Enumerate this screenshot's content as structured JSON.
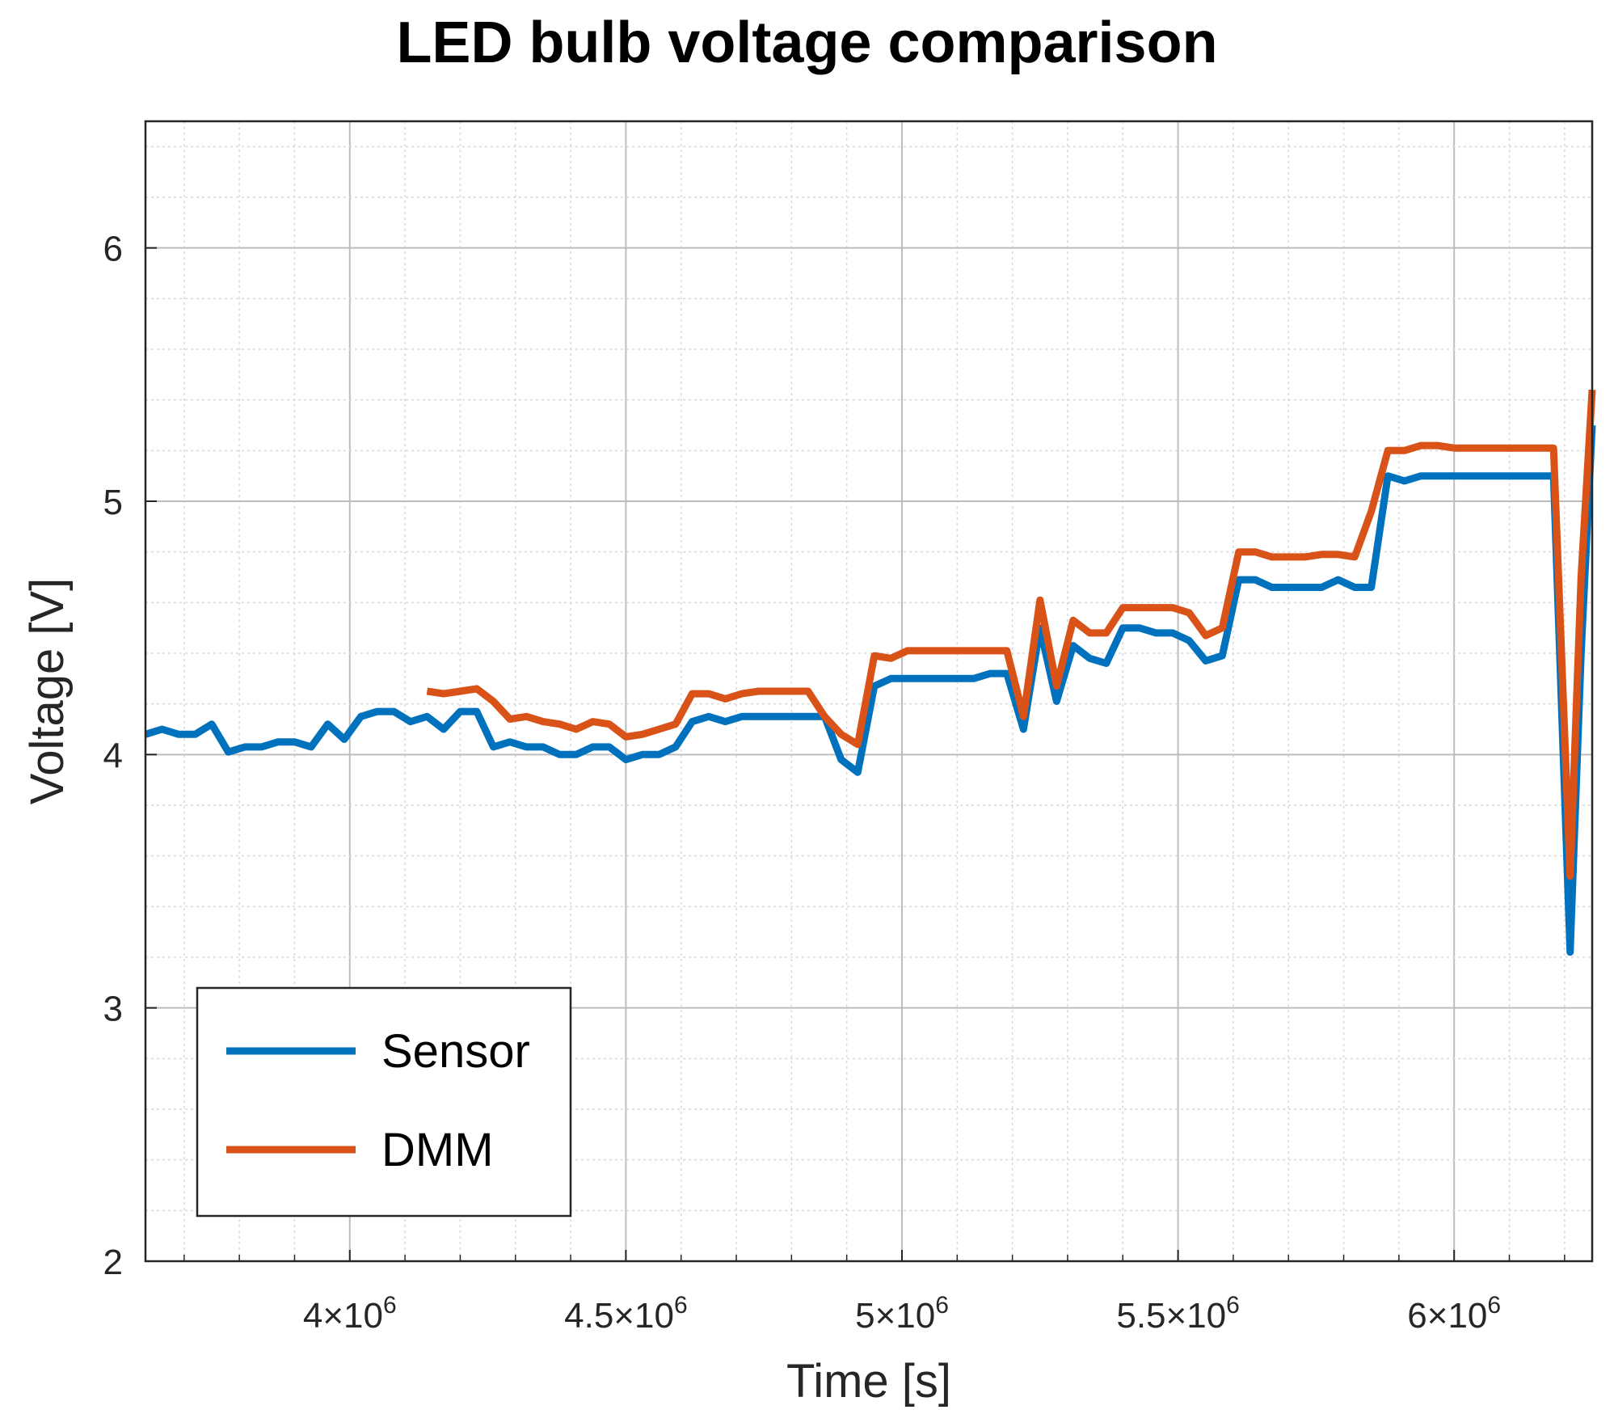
{
  "chart_data": {
    "type": "line",
    "title": "LED bulb voltage comparison",
    "xlabel": "Time [s]",
    "ylabel": "Voltage [V]",
    "xlim": [
      3630000,
      6250000
    ],
    "ylim": [
      2,
      6.5
    ],
    "grid": true,
    "minor_grid": true,
    "legend_position": "bottom-left",
    "x_ticks": [
      {
        "value": 4000000,
        "mantissa": "4",
        "exp": "6"
      },
      {
        "value": 4500000,
        "mantissa": "4.5",
        "exp": "6"
      },
      {
        "value": 5000000,
        "mantissa": "5",
        "exp": "6"
      },
      {
        "value": 5500000,
        "mantissa": "5.5",
        "exp": "6"
      },
      {
        "value": 6000000,
        "mantissa": "6",
        "exp": "6"
      }
    ],
    "x_tick_times_sign": "×10",
    "y_ticks": [
      {
        "value": 2,
        "label": "2"
      },
      {
        "value": 3,
        "label": "3"
      },
      {
        "value": 4,
        "label": "4"
      },
      {
        "value": 5,
        "label": "5"
      },
      {
        "value": 6,
        "label": "6"
      }
    ],
    "series": [
      {
        "name": "Sensor",
        "color": "#0072bd",
        "points": [
          [
            3630000,
            4.08
          ],
          [
            3660000,
            4.1
          ],
          [
            3690000,
            4.08
          ],
          [
            3720000,
            4.08
          ],
          [
            3750000,
            4.12
          ],
          [
            3780000,
            4.01
          ],
          [
            3810000,
            4.03
          ],
          [
            3840000,
            4.03
          ],
          [
            3870000,
            4.05
          ],
          [
            3900000,
            4.05
          ],
          [
            3930000,
            4.03
          ],
          [
            3960000,
            4.12
          ],
          [
            3990000,
            4.06
          ],
          [
            4020000,
            4.15
          ],
          [
            4050000,
            4.17
          ],
          [
            4080000,
            4.17
          ],
          [
            4110000,
            4.13
          ],
          [
            4140000,
            4.15
          ],
          [
            4170000,
            4.1
          ],
          [
            4200000,
            4.17
          ],
          [
            4230000,
            4.17
          ],
          [
            4260000,
            4.03
          ],
          [
            4290000,
            4.05
          ],
          [
            4320000,
            4.03
          ],
          [
            4350000,
            4.03
          ],
          [
            4380000,
            4.0
          ],
          [
            4410000,
            4.0
          ],
          [
            4440000,
            4.03
          ],
          [
            4470000,
            4.03
          ],
          [
            4500000,
            3.98
          ],
          [
            4530000,
            4.0
          ],
          [
            4560000,
            4.0
          ],
          [
            4590000,
            4.03
          ],
          [
            4620000,
            4.13
          ],
          [
            4650000,
            4.15
          ],
          [
            4680000,
            4.13
          ],
          [
            4710000,
            4.15
          ],
          [
            4740000,
            4.15
          ],
          [
            4770000,
            4.15
          ],
          [
            4800000,
            4.15
          ],
          [
            4830000,
            4.15
          ],
          [
            4860000,
            4.15
          ],
          [
            4890000,
            3.98
          ],
          [
            4920000,
            3.93
          ],
          [
            4950000,
            4.27
          ],
          [
            4980000,
            4.3
          ],
          [
            5010000,
            4.3
          ],
          [
            5040000,
            4.3
          ],
          [
            5070000,
            4.3
          ],
          [
            5100000,
            4.3
          ],
          [
            5130000,
            4.3
          ],
          [
            5160000,
            4.32
          ],
          [
            5190000,
            4.32
          ],
          [
            5220000,
            4.1
          ],
          [
            5250000,
            4.5
          ],
          [
            5280000,
            4.21
          ],
          [
            5310000,
            4.43
          ],
          [
            5340000,
            4.38
          ],
          [
            5370000,
            4.36
          ],
          [
            5400000,
            4.5
          ],
          [
            5430000,
            4.5
          ],
          [
            5460000,
            4.48
          ],
          [
            5490000,
            4.48
          ],
          [
            5520000,
            4.45
          ],
          [
            5550000,
            4.37
          ],
          [
            5580000,
            4.39
          ],
          [
            5610000,
            4.69
          ],
          [
            5640000,
            4.69
          ],
          [
            5670000,
            4.66
          ],
          [
            5700000,
            4.66
          ],
          [
            5730000,
            4.66
          ],
          [
            5760000,
            4.66
          ],
          [
            5790000,
            4.69
          ],
          [
            5820000,
            4.66
          ],
          [
            5850000,
            4.66
          ],
          [
            5880000,
            5.1
          ],
          [
            5910000,
            5.08
          ],
          [
            5940000,
            5.1
          ],
          [
            5970000,
            5.1
          ],
          [
            6000000,
            5.1
          ],
          [
            6050000,
            5.1
          ],
          [
            6100000,
            5.1
          ],
          [
            6150000,
            5.1
          ],
          [
            6180000,
            5.1
          ],
          [
            6210000,
            3.22
          ],
          [
            6230000,
            4.4
          ],
          [
            6250000,
            5.3
          ]
        ]
      },
      {
        "name": "DMM",
        "color": "#d95319",
        "points": [
          [
            4140000,
            4.25
          ],
          [
            4170000,
            4.24
          ],
          [
            4200000,
            4.25
          ],
          [
            4230000,
            4.26
          ],
          [
            4260000,
            4.21
          ],
          [
            4290000,
            4.14
          ],
          [
            4320000,
            4.15
          ],
          [
            4350000,
            4.13
          ],
          [
            4380000,
            4.12
          ],
          [
            4410000,
            4.1
          ],
          [
            4440000,
            4.13
          ],
          [
            4470000,
            4.12
          ],
          [
            4500000,
            4.07
          ],
          [
            4530000,
            4.08
          ],
          [
            4560000,
            4.1
          ],
          [
            4590000,
            4.12
          ],
          [
            4620000,
            4.24
          ],
          [
            4650000,
            4.24
          ],
          [
            4680000,
            4.22
          ],
          [
            4710000,
            4.24
          ],
          [
            4740000,
            4.25
          ],
          [
            4770000,
            4.25
          ],
          [
            4800000,
            4.25
          ],
          [
            4830000,
            4.25
          ],
          [
            4860000,
            4.15
          ],
          [
            4890000,
            4.08
          ],
          [
            4920000,
            4.04
          ],
          [
            4950000,
            4.39
          ],
          [
            4980000,
            4.38
          ],
          [
            5010000,
            4.41
          ],
          [
            5040000,
            4.41
          ],
          [
            5070000,
            4.41
          ],
          [
            5100000,
            4.41
          ],
          [
            5130000,
            4.41
          ],
          [
            5160000,
            4.41
          ],
          [
            5190000,
            4.41
          ],
          [
            5220000,
            4.15
          ],
          [
            5250000,
            4.61
          ],
          [
            5280000,
            4.27
          ],
          [
            5310000,
            4.53
          ],
          [
            5340000,
            4.48
          ],
          [
            5370000,
            4.48
          ],
          [
            5400000,
            4.58
          ],
          [
            5430000,
            4.58
          ],
          [
            5460000,
            4.58
          ],
          [
            5490000,
            4.58
          ],
          [
            5520000,
            4.56
          ],
          [
            5550000,
            4.47
          ],
          [
            5580000,
            4.5
          ],
          [
            5610000,
            4.8
          ],
          [
            5640000,
            4.8
          ],
          [
            5670000,
            4.78
          ],
          [
            5700000,
            4.78
          ],
          [
            5730000,
            4.78
          ],
          [
            5760000,
            4.79
          ],
          [
            5790000,
            4.79
          ],
          [
            5820000,
            4.78
          ],
          [
            5850000,
            4.96
          ],
          [
            5880000,
            5.2
          ],
          [
            5910000,
            5.2
          ],
          [
            5940000,
            5.22
          ],
          [
            5970000,
            5.22
          ],
          [
            6000000,
            5.21
          ],
          [
            6050000,
            5.21
          ],
          [
            6100000,
            5.21
          ],
          [
            6150000,
            5.21
          ],
          [
            6180000,
            5.21
          ],
          [
            6210000,
            3.52
          ],
          [
            6230000,
            4.7
          ],
          [
            6250000,
            5.44
          ]
        ]
      }
    ]
  }
}
